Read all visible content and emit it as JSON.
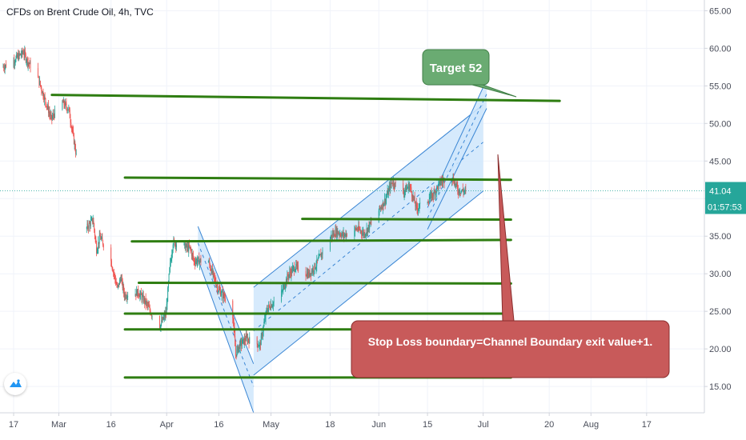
{
  "header": {
    "symbol_title": "CFDs on Brent Crude Oil, 4h, TVC"
  },
  "price_axis": {
    "current_price": "41.04",
    "countdown": "01:57:53"
  },
  "colors": {
    "background": "#ffffff",
    "up_candle": "#26a69a",
    "down_candle": "#ef5350",
    "level_line": "#2e7d11",
    "channel_fill": "#cfe6fb",
    "channel_border": "#3a86d4",
    "current_price": "#26a69a",
    "target_callout": "#6aab72",
    "stoploss_callout": "#c85a5a"
  },
  "annotations": {
    "target_label": "Target 52",
    "stoploss_label": "Stop Loss boundary=Channel Boundary exit value+1."
  },
  "chart_data": {
    "type": "candlestick",
    "title": "CFDs on Brent Crude Oil, 4h, TVC",
    "xlabel": "",
    "ylabel": "",
    "ylim": [
      11.5,
      66
    ],
    "grid": true,
    "y_ticks": [
      "15.00",
      "20.00",
      "25.00",
      "30.00",
      "35.00",
      "40.00",
      "45.00",
      "50.00",
      "55.00",
      "60.00",
      "65.00"
    ],
    "x_ticks": [
      {
        "label": "17",
        "date": "2020-02-17"
      },
      {
        "label": "Mar",
        "date": "2020-03-01"
      },
      {
        "label": "16",
        "date": "2020-03-16"
      },
      {
        "label": "Apr",
        "date": "2020-04-01"
      },
      {
        "label": "16",
        "date": "2020-04-16"
      },
      {
        "label": "May",
        "date": "2020-05-01"
      },
      {
        "label": "18",
        "date": "2020-05-18"
      },
      {
        "label": "Jun",
        "date": "2020-06-01"
      },
      {
        "label": "15",
        "date": "2020-06-15"
      },
      {
        "label": "Jul",
        "date": "2020-07-01"
      },
      {
        "label": "20",
        "date": "2020-07-20"
      },
      {
        "label": "Aug",
        "date": "2020-08-01"
      },
      {
        "label": "17",
        "date": "2020-08-17"
      }
    ],
    "price_path": [
      [
        "2020-02-14",
        57.5
      ],
      [
        "2020-02-17",
        58.3
      ],
      [
        "2020-02-20",
        59.5
      ],
      [
        "2020-02-21",
        58.4
      ],
      [
        "2020-02-24",
        56.3
      ],
      [
        "2020-02-26",
        53.4
      ],
      [
        "2020-02-28",
        50.6
      ],
      [
        "2020-03-02",
        52.9
      ],
      [
        "2020-03-04",
        51.9
      ],
      [
        "2020-03-06",
        46.3
      ],
      [
        "2020-03-09",
        36.0
      ],
      [
        "2020-03-11",
        37.2
      ],
      [
        "2020-03-12",
        33.2
      ],
      [
        "2020-03-13",
        34.9
      ],
      [
        "2020-03-16",
        32.0
      ],
      [
        "2020-03-18",
        28.0
      ],
      [
        "2020-03-19",
        29.5
      ],
      [
        "2020-03-20",
        27.2
      ],
      [
        "2020-03-24",
        27.5
      ],
      [
        "2020-03-26",
        26.3
      ],
      [
        "2020-03-30",
        22.8
      ],
      [
        "2020-04-01",
        24.8
      ],
      [
        "2020-04-02",
        30.5
      ],
      [
        "2020-04-03",
        34.2
      ],
      [
        "2020-04-08",
        33.3
      ],
      [
        "2020-04-09",
        31.7
      ],
      [
        "2020-04-13",
        31.8
      ],
      [
        "2020-04-16",
        27.9
      ],
      [
        "2020-04-20",
        25.6
      ],
      [
        "2020-04-21",
        19.3
      ],
      [
        "2020-04-22",
        20.4
      ],
      [
        "2020-04-24",
        21.4
      ],
      [
        "2020-04-28",
        20.5
      ],
      [
        "2020-04-30",
        25.3
      ],
      [
        "2020-05-04",
        27.2
      ],
      [
        "2020-05-06",
        29.7
      ],
      [
        "2020-05-08",
        30.9
      ],
      [
        "2020-05-12",
        29.9
      ],
      [
        "2020-05-14",
        31.1
      ],
      [
        "2020-05-18",
        34.8
      ],
      [
        "2020-05-20",
        35.6
      ],
      [
        "2020-05-22",
        35.1
      ],
      [
        "2020-05-26",
        36.0
      ],
      [
        "2020-05-28",
        35.3
      ],
      [
        "2020-06-01",
        38.3
      ],
      [
        "2020-06-03",
        39.8
      ],
      [
        "2020-06-05",
        42.3
      ],
      [
        "2020-06-08",
        40.8
      ],
      [
        "2020-06-10",
        41.7
      ],
      [
        "2020-06-12",
        38.7
      ],
      [
        "2020-06-15",
        39.7
      ],
      [
        "2020-06-17",
        40.7
      ],
      [
        "2020-06-19",
        42.2
      ],
      [
        "2020-06-22",
        43.1
      ],
      [
        "2020-06-24",
        41.1
      ],
      [
        "2020-06-26",
        41.0
      ]
    ],
    "horizontal_levels": [
      {
        "from": "2020-02-28",
        "to": "2020-07-23",
        "y1": 53.8,
        "y2": 53.0
      },
      {
        "from": "2020-03-20",
        "to": "2020-07-09",
        "y1": 42.8,
        "y2": 42.5
      },
      {
        "from": "2020-05-10",
        "to": "2020-07-09",
        "y1": 37.3,
        "y2": 37.2
      },
      {
        "from": "2020-03-22",
        "to": "2020-07-09",
        "y1": 34.3,
        "y2": 34.5
      },
      {
        "from": "2020-03-24",
        "to": "2020-07-09",
        "y1": 28.8,
        "y2": 28.7
      },
      {
        "from": "2020-03-20",
        "to": "2020-07-09",
        "y1": 24.7,
        "y2": 24.7
      },
      {
        "from": "2020-03-20",
        "to": "2020-07-09",
        "y1": 22.6,
        "y2": 22.6
      },
      {
        "from": "2020-03-20",
        "to": "2020-07-09",
        "y1": 16.2,
        "y2": 16.2
      }
    ],
    "channels": [
      {
        "direction": "down",
        "from": "2020-04-10",
        "to": "2020-04-26",
        "upper": [
          36.3,
          18.0
        ],
        "lower": [
          31.9,
          11.5
        ],
        "mid": [
          34.1,
          15.0
        ]
      },
      {
        "direction": "up",
        "from": "2020-04-26",
        "to": "2020-07-01",
        "upper": [
          28.2,
          52.5
        ],
        "lower": [
          16.5,
          41.0
        ],
        "mid": [
          22.4,
          47.5
        ]
      },
      {
        "direction": "up",
        "from": "2020-06-15",
        "to": "2020-07-02",
        "upper": [
          38.8,
          55.8
        ],
        "lower": [
          35.9,
          52.0
        ],
        "mid": [
          37.4,
          53.9
        ]
      }
    ]
  }
}
